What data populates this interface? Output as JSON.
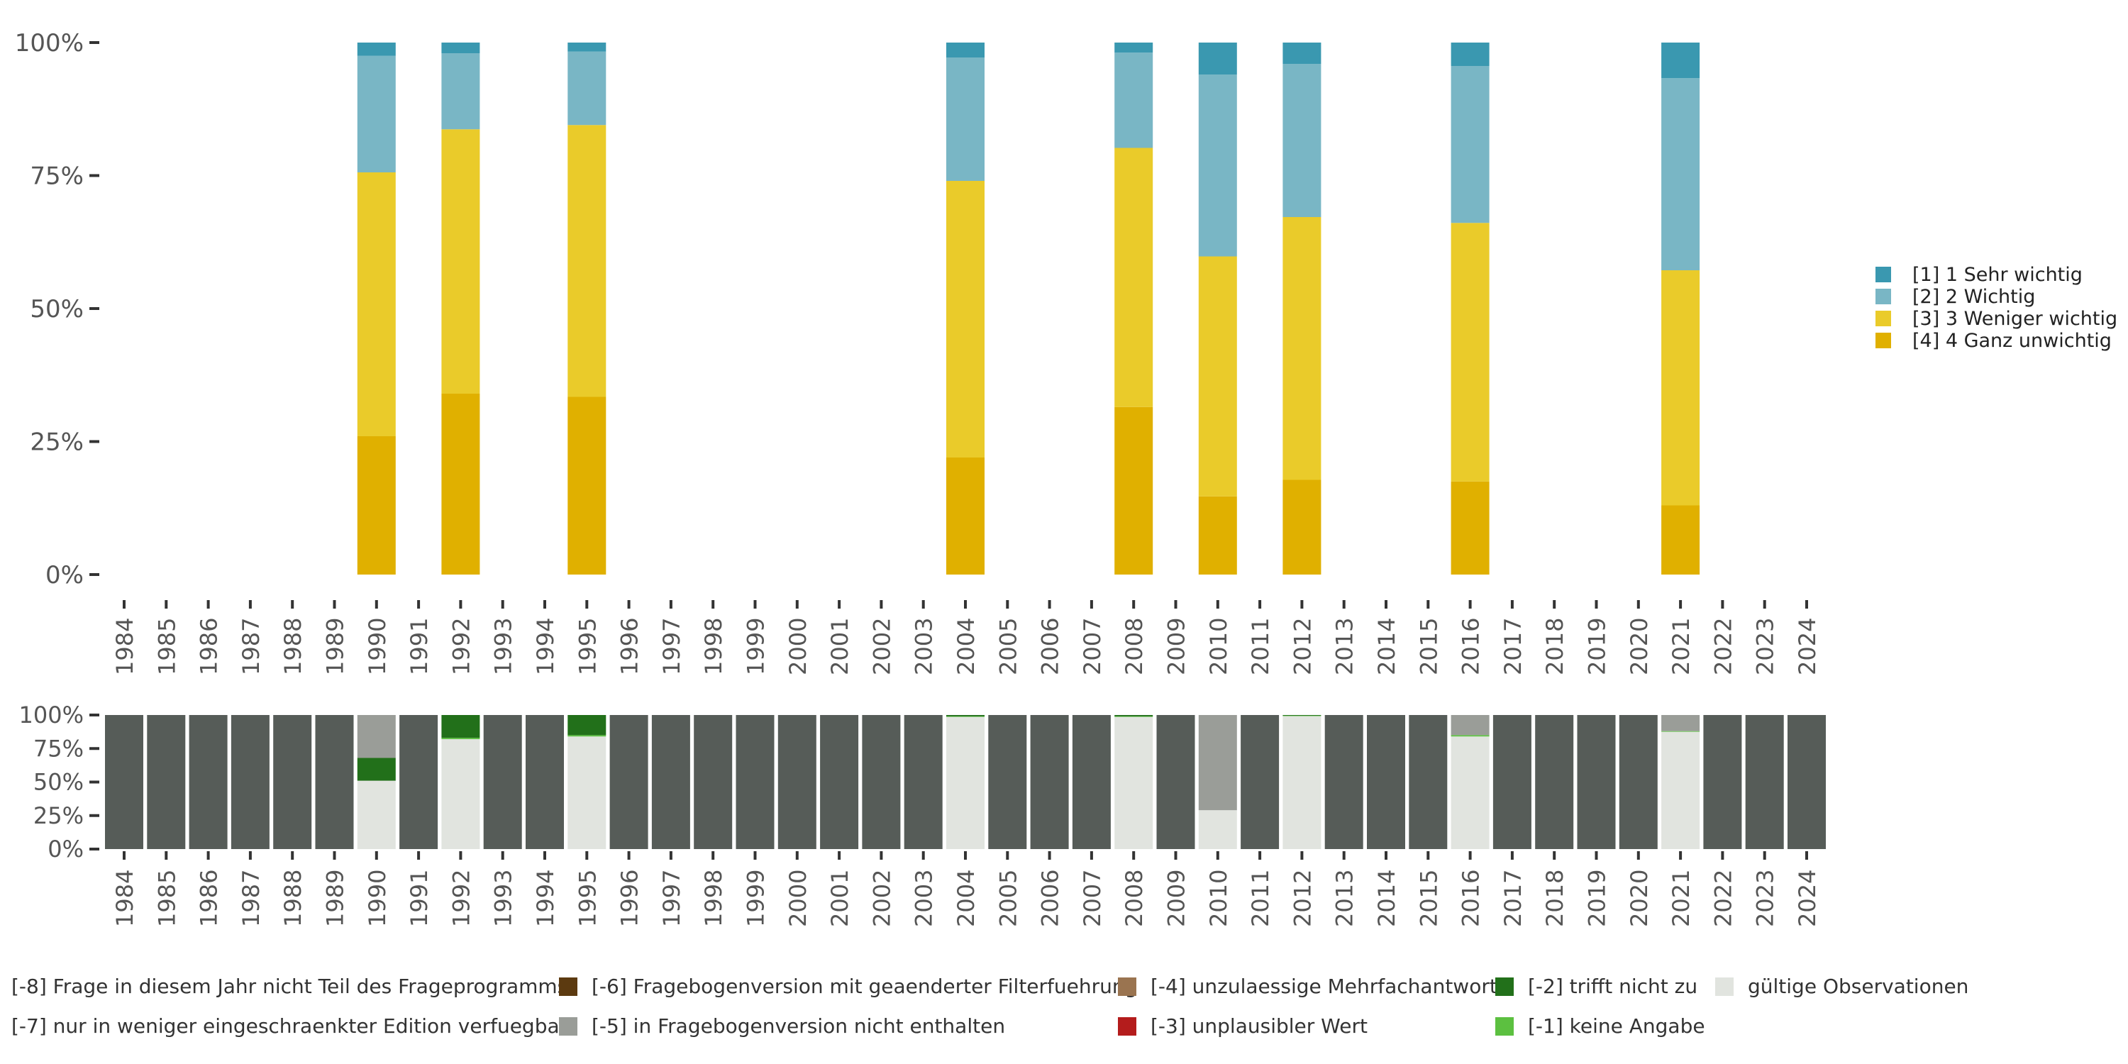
{
  "chart_data": [
    {
      "type": "bar",
      "stacked": true,
      "years": [
        "1984",
        "1985",
        "1986",
        "1987",
        "1988",
        "1989",
        "1990",
        "1991",
        "1992",
        "1993",
        "1994",
        "1995",
        "1996",
        "1997",
        "1998",
        "1999",
        "2000",
        "2001",
        "2002",
        "2003",
        "2004",
        "2005",
        "2006",
        "2007",
        "2008",
        "2009",
        "2010",
        "2011",
        "2012",
        "2013",
        "2014",
        "2015",
        "2016",
        "2017",
        "2018",
        "2019",
        "2020",
        "2021",
        "2022",
        "2023",
        "2024"
      ],
      "ylim": [
        0,
        100
      ],
      "yticks": [
        "0%",
        "25%",
        "50%",
        "75%",
        "100%"
      ],
      "legend_position": "right",
      "series": [
        {
          "name": "[4] 4 Ganz unwichtig",
          "color": "#e0b000"
        },
        {
          "name": "[3] 3 Weniger wichtig",
          "color": "#eacb2a"
        },
        {
          "name": "[2] 2 Wichtig",
          "color": "#79b6c5"
        },
        {
          "name": "[1] 1 Sehr wichtig",
          "color": "#3a98b0"
        }
      ],
      "bars": [
        {
          "year": "1990",
          "values": [
            26,
            49.6,
            21.9,
            2.5
          ]
        },
        {
          "year": "1992",
          "values": [
            34,
            49.7,
            14.3,
            2.0
          ]
        },
        {
          "year": "1995",
          "values": [
            33.4,
            51.1,
            13.8,
            1.7
          ]
        },
        {
          "year": "2004",
          "values": [
            22,
            52,
            23.2,
            2.8
          ]
        },
        {
          "year": "2008",
          "values": [
            31.5,
            48.7,
            17.9,
            1.9
          ]
        },
        {
          "year": "2010",
          "values": [
            14.7,
            45.1,
            34.2,
            6.0
          ]
        },
        {
          "year": "2012",
          "values": [
            17.8,
            49.4,
            28.8,
            4.0
          ]
        },
        {
          "year": "2016",
          "values": [
            17.5,
            48.6,
            29.5,
            4.4
          ]
        },
        {
          "year": "2021",
          "values": [
            13,
            44.2,
            36.1,
            6.7
          ]
        }
      ]
    },
    {
      "type": "bar",
      "stacked": true,
      "years": [
        "1984",
        "1985",
        "1986",
        "1987",
        "1988",
        "1989",
        "1990",
        "1991",
        "1992",
        "1993",
        "1994",
        "1995",
        "1996",
        "1997",
        "1998",
        "1999",
        "2000",
        "2001",
        "2002",
        "2003",
        "2004",
        "2005",
        "2006",
        "2007",
        "2008",
        "2009",
        "2010",
        "2011",
        "2012",
        "2013",
        "2014",
        "2015",
        "2016",
        "2017",
        "2018",
        "2019",
        "2020",
        "2021",
        "2022",
        "2023",
        "2024"
      ],
      "ylim": [
        0,
        100
      ],
      "yticks": [
        "0%",
        "25%",
        "50%",
        "75%",
        "100%"
      ],
      "legend_position": "bottom",
      "series": [
        {
          "name": "[-8] Frage in diesem Jahr nicht Teil des Frageprogramms",
          "color": "#565c58"
        },
        {
          "name": "[-7] nur in weniger eingeschraenkter Edition verfuegbar",
          "color": "#ffffff"
        },
        {
          "name": "[-6] Fragebogenversion mit geaenderter Filterfuehrung",
          "color": "#5c3a10"
        },
        {
          "name": "[-5] in Fragebogenversion nicht enthalten",
          "color": "#9a9d98"
        },
        {
          "name": "[-4] unzulaessige Mehrfachantwort",
          "color": "#9a7450"
        },
        {
          "name": "[-3] unplausibler Wert",
          "color": "#b41c1c"
        },
        {
          "name": "[-2] trifft nicht zu",
          "color": "#22701a"
        },
        {
          "name": "[-1] keine Angabe",
          "color": "#5cc040"
        },
        {
          "name": "gültige Observationen",
          "color": "#e1e4df"
        }
      ],
      "series_order_bottom_up": [
        "gültige Observationen",
        "[-1] keine Angabe",
        "[-2] trifft nicht zu",
        "[-3] unplausibler Wert",
        "[-4] unzulaessige Mehrfachantwort",
        "[-5] in Fragebogenversion nicht enthalten",
        "[-6] Fragebogenversion mit geaenderter Filterfuehrung",
        "[-7] nur in weniger eingeschraenkter Edition verfuegbar",
        "[-8] Frage in diesem Jahr nicht Teil des Frageprogramms"
      ],
      "bars": [
        {
          "year": "1990",
          "values": {
            "gültige Observationen": 51,
            "[-2] trifft nicht zu": 17,
            "[-5] in Fragebogenversion nicht enthalten": 32
          }
        },
        {
          "year": "1992",
          "values": {
            "gültige Observationen": 82,
            "[-1] keine Angabe": 1,
            "[-2] trifft nicht zu": 17
          }
        },
        {
          "year": "1995",
          "values": {
            "gültige Observationen": 84,
            "[-1] keine Angabe": 1,
            "[-2] trifft nicht zu": 15
          }
        },
        {
          "year": "2004",
          "values": {
            "gültige Observationen": 98.6,
            "[-1] keine Angabe": 0.4,
            "[-2] trifft nicht zu": 1
          }
        },
        {
          "year": "2008",
          "values": {
            "gültige Observationen": 98.6,
            "[-1] keine Angabe": 0.4,
            "[-2] trifft nicht zu": 1
          }
        },
        {
          "year": "2010",
          "values": {
            "gültige Observationen": 29,
            "[-5] in Fragebogenversion nicht enthalten": 71
          }
        },
        {
          "year": "2012",
          "values": {
            "gültige Observationen": 99.2,
            "[-1] keine Angabe": 0.3,
            "[-2] trifft nicht zu": 0.5
          }
        },
        {
          "year": "2016",
          "values": {
            "gültige Observationen": 84,
            "[-1] keine Angabe": 1,
            "[-5] in Fragebogenversion nicht enthalten": 15
          }
        },
        {
          "year": "2021",
          "values": {
            "gültige Observationen": 87.5,
            "[-1] keine Angabe": 0.5,
            "[-5] in Fragebogenversion nicht enthalten": 12
          }
        }
      ],
      "default_bar": {
        "[-8] Frage in diesem Jahr nicht Teil des Frageprogramms": 100
      }
    }
  ]
}
